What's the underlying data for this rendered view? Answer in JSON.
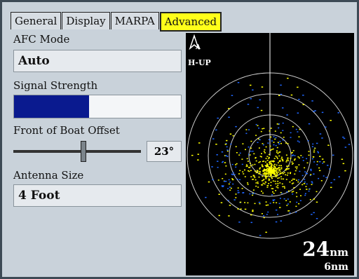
{
  "tabs": [
    "General",
    "Display",
    "MARPA",
    "Advanced"
  ],
  "active_tab": "Advanced",
  "afc": {
    "label": "AFC Mode",
    "value": "Auto"
  },
  "signal": {
    "label": "Signal Strength",
    "level": 0.45,
    "color": "#0a1a8f"
  },
  "offset": {
    "label": "Front of Boat Offset",
    "value": "23°",
    "slider": 0.55
  },
  "antenna": {
    "label": "Antenna Size",
    "value": "4 Foot"
  },
  "radar": {
    "orientation": "H-UP",
    "range_value": "24",
    "range_unit": "nm",
    "ring_value": "6nm",
    "compass_letter": "A",
    "colors": {
      "echo_strong": "#ffff00",
      "echo_weak": "#1e66ff",
      "ring": "#ffffff"
    }
  }
}
